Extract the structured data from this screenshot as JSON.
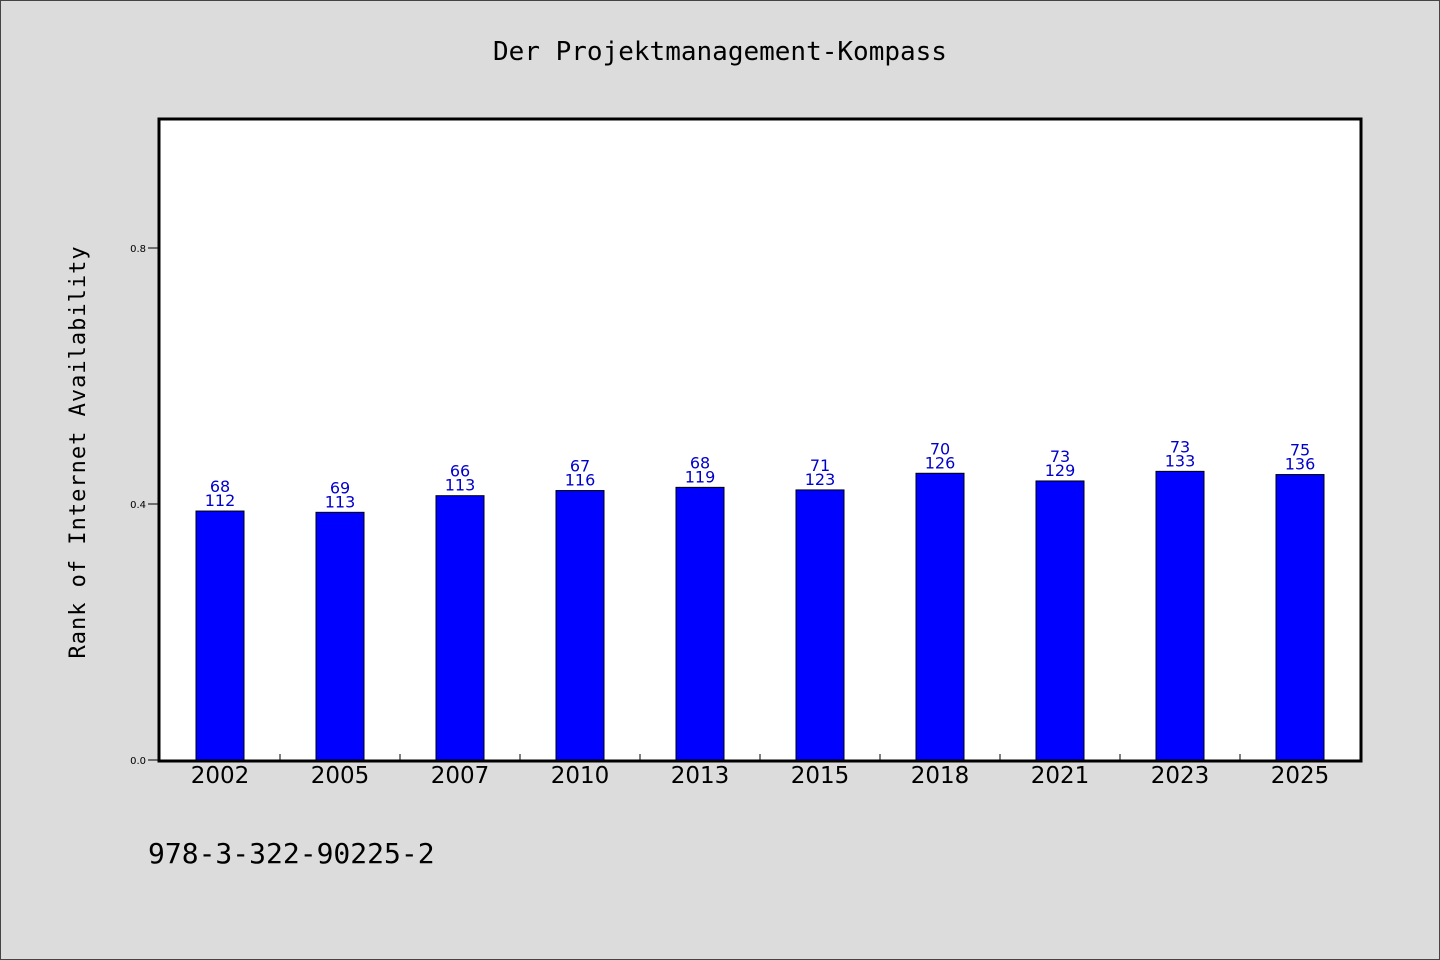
{
  "chart_data": {
    "type": "bar",
    "title": "Der Projektmanagement-Kompass",
    "xlabel": "",
    "ylabel": "Rank of Internet Availability",
    "ylim": [
      0,
      1.0
    ],
    "yticks": [
      "0.0",
      "0.4",
      "0.8"
    ],
    "grid": false,
    "bar_color": "#0000ff",
    "label_color": "#0000cc",
    "categories": [
      "2002",
      "2005",
      "2007",
      "2010",
      "2013",
      "2015",
      "2018",
      "2021",
      "2023",
      "2025"
    ],
    "values": [
      0.389,
      0.387,
      0.413,
      0.421,
      0.426,
      0.422,
      0.448,
      0.436,
      0.451,
      0.446
    ],
    "labels_top": [
      "68",
      "69",
      "66",
      "67",
      "68",
      "71",
      "70",
      "73",
      "73",
      "75"
    ],
    "labels_bottom": [
      "112",
      "113",
      "113",
      "116",
      "119",
      "123",
      "126",
      "129",
      "133",
      "136"
    ]
  },
  "footer": {
    "isbn": "978-3-322-90225-2"
  }
}
